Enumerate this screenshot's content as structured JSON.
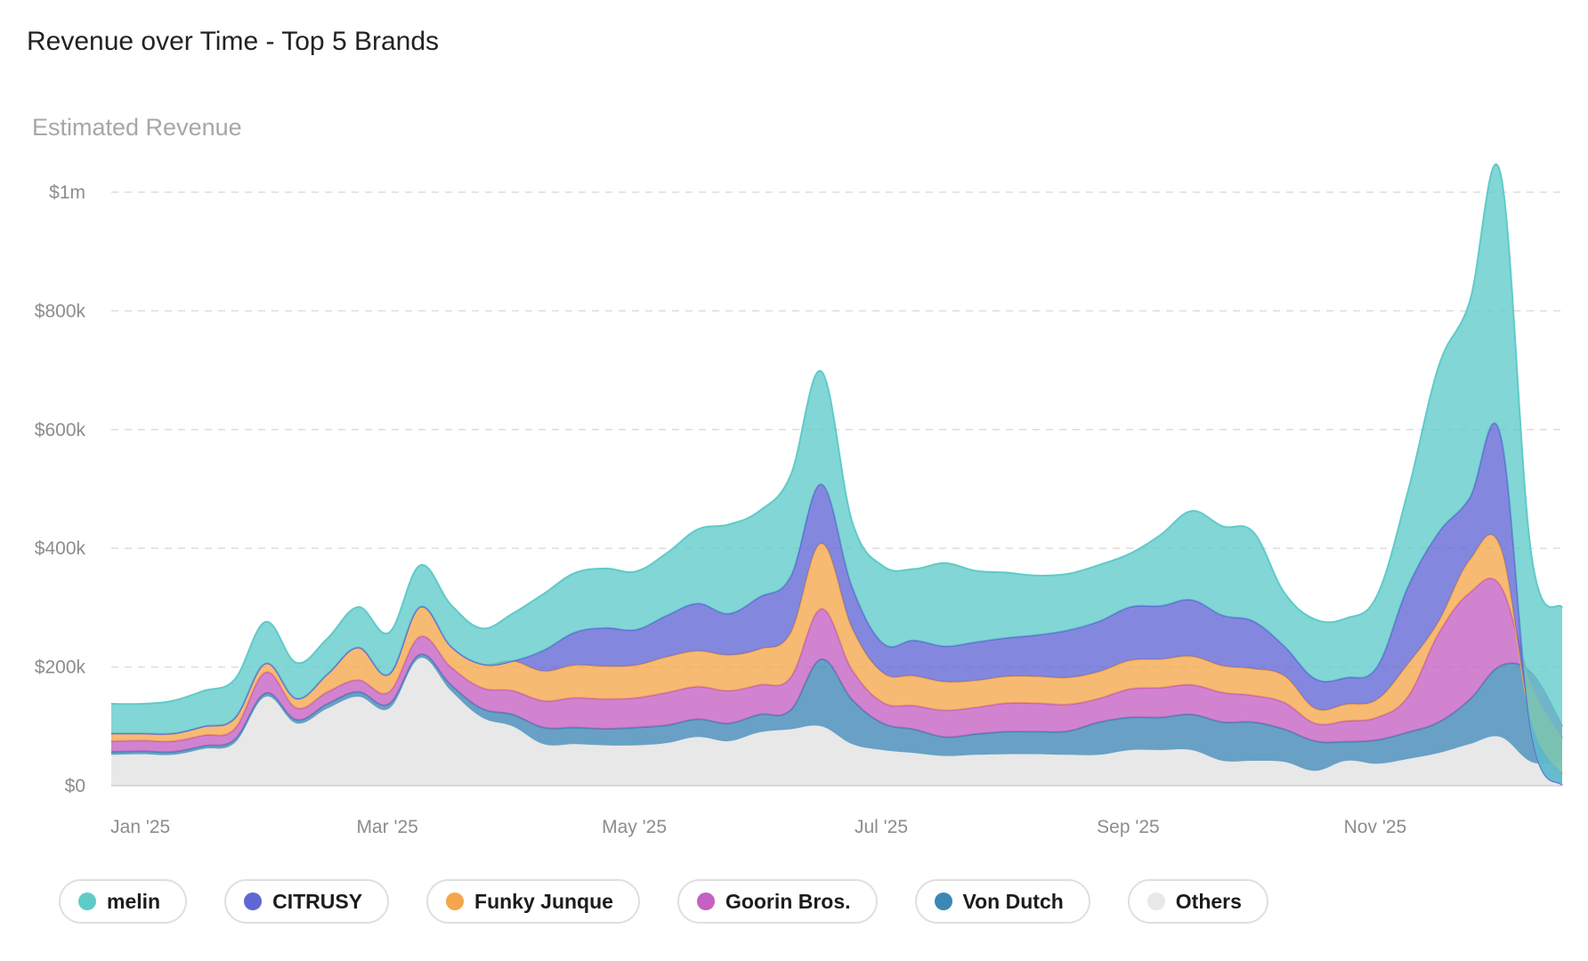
{
  "title": "Revenue over Time - Top 5 Brands",
  "chart_data": {
    "type": "area",
    "stacked": true,
    "title": "Revenue over Time - Top 5 Brands",
    "ylabel": "Estimated Revenue",
    "xlabel": "",
    "ylim": [
      0,
      1000000
    ],
    "y_ticks": [
      0,
      200000,
      400000,
      600000,
      800000,
      1000000
    ],
    "y_tick_labels": [
      "$0",
      "$200k",
      "$400k",
      "$600k",
      "$800k",
      "$1m"
    ],
    "x_tick_labels": [
      "Jan '25",
      "Mar '25",
      "May '25",
      "Jul '25",
      "Sep '25",
      "Nov '25"
    ],
    "x_tick_weeks": [
      1,
      9,
      17,
      25,
      33,
      41
    ],
    "grid": true,
    "legend_position": "bottom",
    "x_weeks": [
      0,
      1,
      2,
      3,
      4,
      5,
      6,
      7,
      8,
      9,
      10,
      11,
      12,
      13,
      14,
      15,
      16,
      17,
      18,
      19,
      20,
      21,
      22,
      23,
      24,
      25,
      26,
      27,
      28,
      29,
      30,
      31,
      32,
      33,
      34,
      35,
      36,
      37,
      38,
      39,
      40,
      41,
      42,
      43,
      44,
      45,
      46,
      47
    ],
    "series": [
      {
        "name": "Others",
        "color": "#e8e8e8",
        "values": [
          52,
          53,
          52,
          62,
          72,
          150,
          105,
          130,
          150,
          130,
          215,
          160,
          115,
          100,
          70,
          70,
          68,
          68,
          72,
          82,
          75,
          90,
          95,
          100,
          70,
          60,
          55,
          50,
          52,
          53,
          53,
          52,
          52,
          60,
          60,
          60,
          42,
          42,
          40,
          25,
          42,
          37,
          45,
          55,
          70,
          82,
          40,
          40
        ]
      },
      {
        "name": "Von Dutch",
        "color": "#3d87b5",
        "values": [
          5,
          5,
          5,
          5,
          6,
          6,
          6,
          8,
          8,
          8,
          6,
          10,
          15,
          20,
          28,
          28,
          28,
          30,
          30,
          30,
          30,
          30,
          32,
          113,
          75,
          45,
          40,
          32,
          35,
          38,
          38,
          40,
          55,
          55,
          55,
          60,
          65,
          65,
          55,
          50,
          32,
          40,
          45,
          52,
          75,
          120,
          150,
          60
        ]
      },
      {
        "name": "Goorin Bros.",
        "color": "#c460c2",
        "values": [
          18,
          18,
          18,
          18,
          18,
          35,
          20,
          20,
          20,
          20,
          30,
          30,
          35,
          40,
          45,
          50,
          50,
          50,
          55,
          55,
          55,
          50,
          55,
          85,
          50,
          35,
          40,
          45,
          45,
          48,
          48,
          45,
          40,
          48,
          50,
          50,
          50,
          45,
          45,
          30,
          35,
          38,
          60,
          150,
          180,
          135,
          -20,
          -20
        ]
      },
      {
        "name": "Funky Junque",
        "color": "#f5a64a",
        "values": [
          13,
          12,
          13,
          15,
          18,
          15,
          16,
          30,
          55,
          30,
          50,
          35,
          40,
          50,
          50,
          55,
          55,
          55,
          60,
          60,
          60,
          60,
          75,
          110,
          70,
          50,
          50,
          48,
          45,
          45,
          45,
          45,
          45,
          48,
          48,
          48,
          45,
          45,
          45,
          25,
          28,
          30,
          55,
          20,
          55,
          65,
          -60,
          -60
        ]
      },
      {
        "name": "CITRUSY",
        "color": "#6067d5",
        "values": [
          0,
          0,
          0,
          0,
          0,
          0,
          0,
          0,
          0,
          0,
          0,
          0,
          0,
          0,
          35,
          55,
          65,
          60,
          70,
          80,
          70,
          88,
          95,
          100,
          70,
          50,
          60,
          60,
          65,
          65,
          70,
          80,
          85,
          90,
          90,
          95,
          85,
          80,
          50,
          50,
          45,
          55,
          130,
          150,
          105,
          190,
          -20,
          -20
        ]
      },
      {
        "name": "melin",
        "color": "#5fcbc9",
        "values": [
          50,
          50,
          55,
          60,
          65,
          70,
          60,
          60,
          68,
          70,
          70,
          70,
          60,
          80,
          95,
          100,
          100,
          98,
          105,
          125,
          150,
          145,
          170,
          190,
          110,
          130,
          120,
          140,
          120,
          110,
          100,
          95,
          95,
          90,
          120,
          150,
          150,
          150,
          90,
          100,
          100,
          120,
          160,
          280,
          330,
          440,
          300,
          300
        ]
      }
    ]
  },
  "legend": [
    {
      "label": "melin",
      "color": "#5fcbc9"
    },
    {
      "label": "CITRUSY",
      "color": "#6067d5"
    },
    {
      "label": "Funky Junque",
      "color": "#f5a64a"
    },
    {
      "label": "Goorin Bros.",
      "color": "#c460c2"
    },
    {
      "label": "Von Dutch",
      "color": "#3d87b5"
    },
    {
      "label": "Others",
      "color": "#e8e8e8"
    }
  ]
}
